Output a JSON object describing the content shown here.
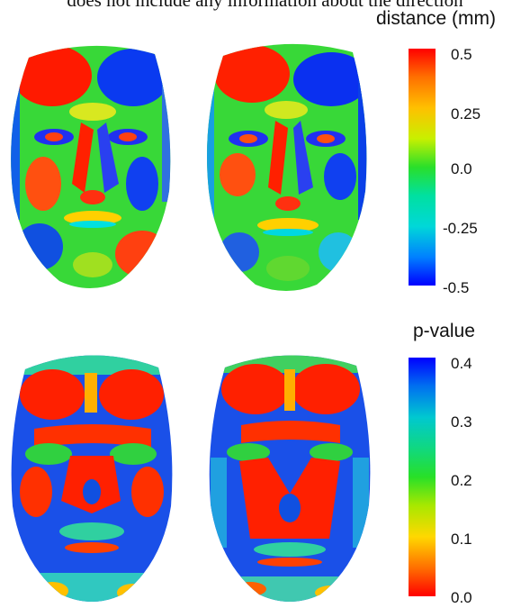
{
  "caption_fragment": "does not include any information about the direction",
  "panel_top": {
    "legend_title": "distance (mm)",
    "ticks": [
      "0.5",
      "0.25",
      "0.0",
      "-0.25",
      "-0.5"
    ],
    "scale_colors": [
      "#ff0000",
      "#ffc000",
      "#2adf2a",
      "#00d8d8",
      "#0000ff"
    ]
  },
  "panel_bottom": {
    "legend_title": "p-value",
    "ticks": [
      "0.4",
      "0.3",
      "0.2",
      "0.1",
      "0.0"
    ],
    "scale_colors": [
      "#0000ff",
      "#00c8d0",
      "#28e028",
      "#ffd800",
      "#ff0000"
    ]
  }
}
